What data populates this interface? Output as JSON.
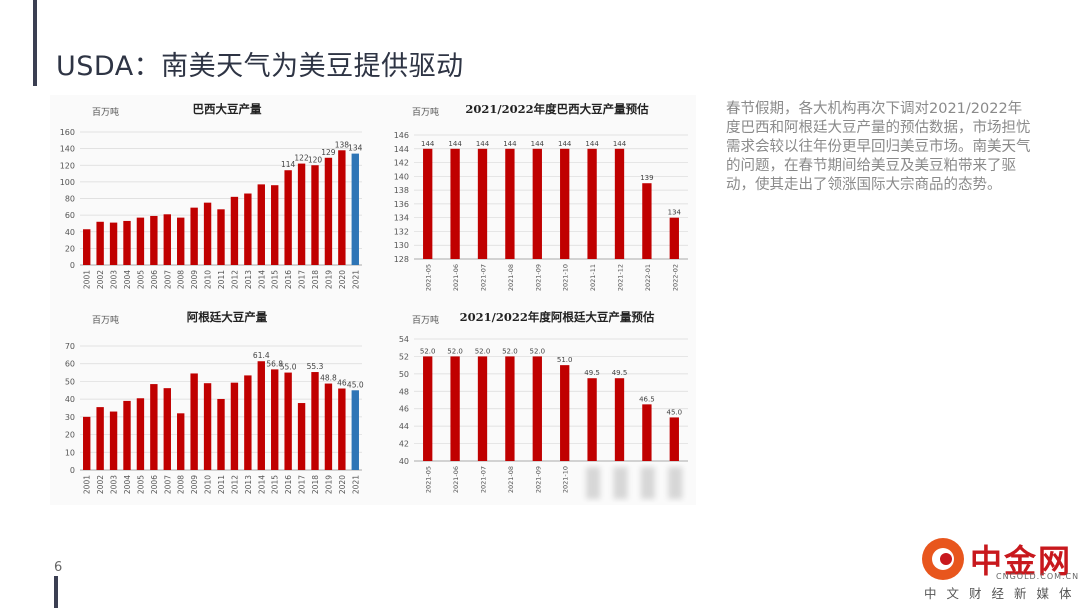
{
  "slide": {
    "title": "USDA：南美天气为美豆提供驱动",
    "body_text": "春节假期，各大机构再次下调对2021/2022年度巴西和阿根廷大豆产量的预估数据，市场担忧需求会较以往年份更早回归美豆市场。南美天气的问题，在春节期间给美豆及美豆粕带来了驱动，使其走出了领涨国际大宗商品的态势。",
    "page_number": "6",
    "colors": {
      "accent": "#3b3f52",
      "bar_red": "#c00000",
      "bar_blue": "#2e75b6",
      "text_gray": "#8a8a8a"
    }
  },
  "logo": {
    "main": "中金网",
    "url": "CNGOLD.COM.CN",
    "sub": "中文财经新媒体",
    "icon": "cngold-logo-icon"
  },
  "chart_data": [
    {
      "id": "brazil-annual",
      "type": "bar",
      "title": "巴西大豆产量",
      "unit_label": "百万吨",
      "categories": [
        "2001",
        "2002",
        "2003",
        "2004",
        "2005",
        "2006",
        "2007",
        "2008",
        "2009",
        "2010",
        "2011",
        "2012",
        "2013",
        "2014",
        "2015",
        "2016",
        "2017",
        "2018",
        "2019",
        "2020",
        "2021"
      ],
      "values": [
        43,
        52,
        51,
        53,
        57,
        59,
        61,
        57,
        69,
        75,
        67,
        82,
        86,
        97,
        96,
        114,
        122,
        120,
        129,
        138,
        134
      ],
      "data_labels": {
        "15": "114",
        "16": "122",
        "17": "120",
        "18": "129",
        "19": "138",
        "20": "134"
      },
      "highlight_index": 20,
      "ylim": [
        0,
        160
      ],
      "yticks": [
        0,
        20,
        40,
        60,
        80,
        100,
        120,
        140,
        160
      ],
      "grid": true
    },
    {
      "id": "brazil-forecast",
      "type": "bar",
      "title": "2021/2022年度巴西大豆产量预估",
      "unit_label": "百万吨",
      "categories": [
        "2021-05",
        "2021-06",
        "2021-07",
        "2021-08",
        "2021-09",
        "2021-10",
        "2021-11",
        "2021-12",
        "2022-01",
        "2022-02"
      ],
      "values": [
        144,
        144,
        144,
        144,
        144,
        144,
        144,
        144,
        139,
        134
      ],
      "data_labels": [
        "144",
        "144",
        "144",
        "144",
        "144",
        "144",
        "144",
        "144",
        "139",
        "134"
      ],
      "ylim": [
        128,
        146
      ],
      "yticks": [
        128,
        130,
        132,
        134,
        136,
        138,
        140,
        142,
        144,
        146
      ],
      "grid": true
    },
    {
      "id": "argentina-annual",
      "type": "bar",
      "title": "阿根廷大豆产量",
      "unit_label": "百万吨",
      "categories": [
        "2001",
        "2002",
        "2003",
        "2004",
        "2005",
        "2006",
        "2007",
        "2008",
        "2009",
        "2010",
        "2011",
        "2012",
        "2013",
        "2014",
        "2015",
        "2016",
        "2017",
        "2018",
        "2019",
        "2020",
        "2021"
      ],
      "values": [
        30,
        35.5,
        33,
        39,
        40.5,
        48.5,
        46.2,
        32,
        54.5,
        49,
        40.1,
        49.3,
        53.4,
        61.4,
        56.8,
        55.0,
        37.8,
        55.3,
        48.8,
        46,
        45.0
      ],
      "data_labels": {
        "13": "61.4",
        "14": "56.8",
        "15": "55.0",
        "17": "55.3",
        "18": "48.8",
        "19": "46",
        "20": "45.0"
      },
      "highlight_index": 20,
      "ylim": [
        0,
        70
      ],
      "yticks": [
        0,
        10,
        20,
        30,
        40,
        50,
        60,
        70
      ],
      "grid": true
    },
    {
      "id": "argentina-forecast",
      "type": "bar",
      "title": "2021/2022年度阿根廷大豆产量预估",
      "unit_label": "百万吨",
      "categories": [
        "2021-05",
        "2021-06",
        "2021-07",
        "2021-08",
        "2021-09",
        "2021-10",
        "",
        "",
        "",
        ""
      ],
      "values": [
        52.0,
        52.0,
        52.0,
        52.0,
        52.0,
        51.0,
        49.5,
        49.5,
        46.5,
        45.0
      ],
      "data_labels": [
        "52.0",
        "52.0",
        "52.0",
        "52.0",
        "52.0",
        "51.0",
        "49.5",
        "49.5",
        "46.5",
        "45.0"
      ],
      "ylim": [
        40,
        54
      ],
      "yticks": [
        40,
        42,
        44,
        46,
        48,
        50,
        52,
        54
      ],
      "grid": true
    }
  ]
}
